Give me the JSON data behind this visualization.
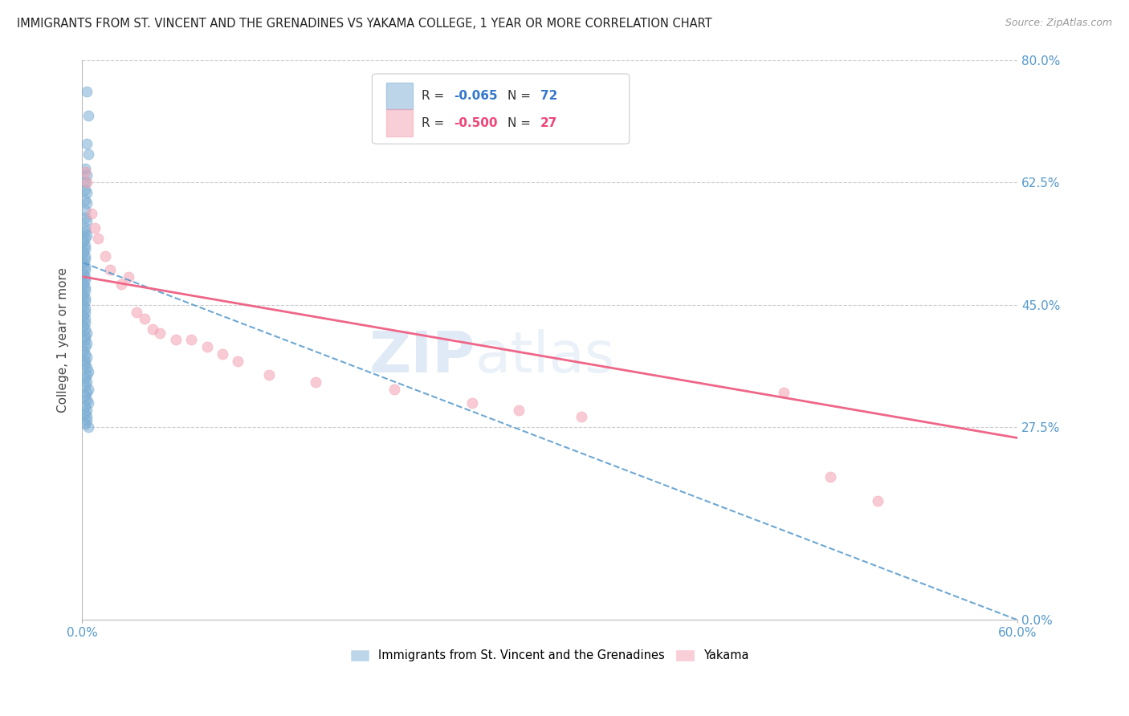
{
  "title": "IMMIGRANTS FROM ST. VINCENT AND THE GRENADINES VS YAKAMA COLLEGE, 1 YEAR OR MORE CORRELATION CHART",
  "source": "Source: ZipAtlas.com",
  "ylabel_label": "College, 1 year or more",
  "xlim": [
    0.0,
    0.6
  ],
  "ylim": [
    0.0,
    0.8
  ],
  "yticks": [
    0.0,
    0.275,
    0.45,
    0.625,
    0.8
  ],
  "ytick_labels": [
    "0.0%",
    "27.5%",
    "45.0%",
    "62.5%",
    "80.0%"
  ],
  "xticks": [
    0.0,
    0.6
  ],
  "xtick_labels": [
    "0.0%",
    "60.0%"
  ],
  "legend_blue_R": "-0.065",
  "legend_blue_N": "72",
  "legend_pink_R": "-0.500",
  "legend_pink_N": "27",
  "legend_label_blue": "Immigrants from St. Vincent and the Grenadines",
  "legend_label_pink": "Yakama",
  "blue_color": "#7aadd4",
  "pink_color": "#f4a0b0",
  "trendline_blue_color": "#5599cc",
  "trendline_pink_color": "#ee6688",
  "blue_scatter_x": [
    0.003,
    0.004,
    0.003,
    0.004,
    0.002,
    0.003,
    0.002,
    0.002,
    0.003,
    0.002,
    0.003,
    0.002,
    0.002,
    0.003,
    0.002,
    0.002,
    0.003,
    0.002,
    0.001,
    0.002,
    0.002,
    0.001,
    0.002,
    0.002,
    0.001,
    0.002,
    0.002,
    0.001,
    0.002,
    0.002,
    0.001,
    0.002,
    0.002,
    0.001,
    0.002,
    0.002,
    0.001,
    0.002,
    0.002,
    0.001,
    0.002,
    0.002,
    0.001,
    0.002,
    0.003,
    0.002,
    0.002,
    0.003,
    0.002,
    0.001,
    0.002,
    0.003,
    0.002,
    0.002,
    0.003,
    0.004,
    0.003,
    0.002,
    0.003,
    0.002,
    0.004,
    0.003,
    0.002,
    0.003,
    0.004,
    0.002,
    0.003,
    0.002,
    0.003,
    0.003,
    0.002,
    0.004
  ],
  "blue_scatter_y": [
    0.755,
    0.72,
    0.68,
    0.665,
    0.645,
    0.635,
    0.625,
    0.615,
    0.61,
    0.6,
    0.595,
    0.585,
    0.575,
    0.57,
    0.56,
    0.555,
    0.55,
    0.545,
    0.54,
    0.535,
    0.53,
    0.525,
    0.52,
    0.515,
    0.51,
    0.505,
    0.5,
    0.495,
    0.49,
    0.485,
    0.48,
    0.475,
    0.47,
    0.465,
    0.46,
    0.455,
    0.45,
    0.445,
    0.44,
    0.435,
    0.43,
    0.425,
    0.42,
    0.415,
    0.41,
    0.405,
    0.4,
    0.395,
    0.39,
    0.385,
    0.38,
    0.375,
    0.37,
    0.365,
    0.36,
    0.355,
    0.35,
    0.345,
    0.34,
    0.335,
    0.33,
    0.325,
    0.32,
    0.315,
    0.31,
    0.305,
    0.3,
    0.295,
    0.29,
    0.285,
    0.28,
    0.275
  ],
  "pink_scatter_x": [
    0.002,
    0.003,
    0.006,
    0.008,
    0.01,
    0.015,
    0.018,
    0.025,
    0.03,
    0.035,
    0.04,
    0.045,
    0.05,
    0.06,
    0.07,
    0.08,
    0.09,
    0.1,
    0.12,
    0.15,
    0.2,
    0.25,
    0.28,
    0.32,
    0.45,
    0.48,
    0.51
  ],
  "pink_scatter_y": [
    0.64,
    0.625,
    0.58,
    0.56,
    0.545,
    0.52,
    0.5,
    0.48,
    0.49,
    0.44,
    0.43,
    0.415,
    0.41,
    0.4,
    0.4,
    0.39,
    0.38,
    0.37,
    0.35,
    0.34,
    0.33,
    0.31,
    0.3,
    0.29,
    0.325,
    0.205,
    0.17
  ],
  "blue_trend_x0": 0.001,
  "blue_trend_y0": 0.51,
  "blue_trend_x1": 0.6,
  "blue_trend_y1": 0.0,
  "pink_trend_x0": 0.001,
  "pink_trend_y0": 0.49,
  "pink_trend_x1": 0.6,
  "pink_trend_y1": 0.26
}
